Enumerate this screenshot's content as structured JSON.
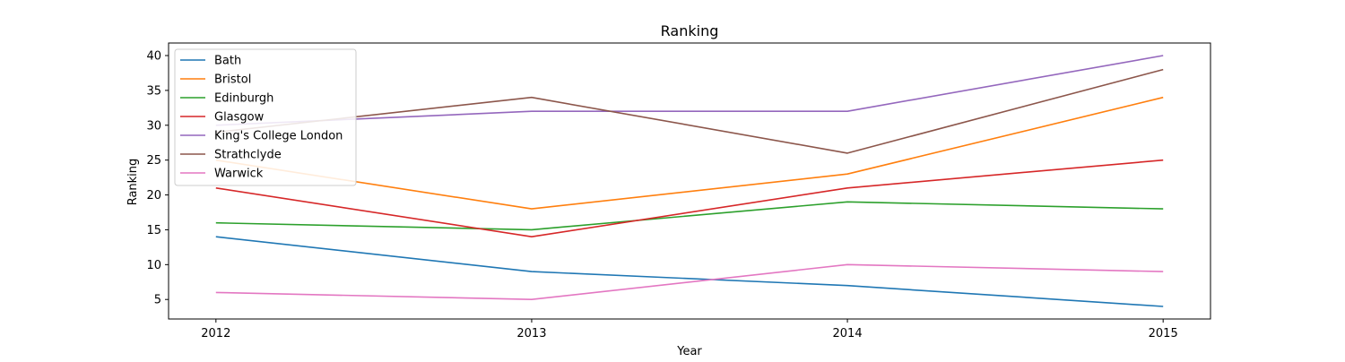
{
  "chart_data": {
    "type": "line",
    "title": "Ranking",
    "xlabel": "Year",
    "ylabel": "Ranking",
    "x": [
      2012,
      2013,
      2014,
      2015
    ],
    "x_tick_labels": [
      "2012",
      "2013",
      "2014",
      "2015"
    ],
    "y_ticks": [
      5,
      10,
      15,
      20,
      25,
      30,
      35,
      40
    ],
    "xlim": [
      2011.85,
      2015.15
    ],
    "ylim": [
      2.2,
      41.8
    ],
    "grid": false,
    "legend_position": "top-left",
    "series": [
      {
        "name": "Bath",
        "color": "#1f77b4",
        "values": [
          14,
          9,
          7,
          4
        ]
      },
      {
        "name": "Bristol",
        "color": "#ff7f0e",
        "values": [
          25,
          18,
          23,
          34
        ]
      },
      {
        "name": "Edinburgh",
        "color": "#2ca02c",
        "values": [
          16,
          15,
          19,
          18
        ]
      },
      {
        "name": "Glasgow",
        "color": "#d62728",
        "values": [
          21,
          14,
          21,
          25
        ]
      },
      {
        "name": "King's College London",
        "color": "#9467bd",
        "values": [
          30,
          32,
          32,
          40
        ]
      },
      {
        "name": "Strathclyde",
        "color": "#8c564b",
        "values": [
          29,
          34,
          26,
          38
        ]
      },
      {
        "name": "Warwick",
        "color": "#e377c2",
        "values": [
          6,
          5,
          10,
          9
        ]
      }
    ]
  }
}
